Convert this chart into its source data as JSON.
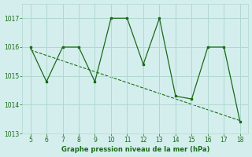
{
  "x": [
    5,
    6,
    7,
    8,
    9,
    10,
    11,
    12,
    13,
    14,
    15,
    16,
    17,
    18
  ],
  "y": [
    1016.0,
    1014.8,
    1016.0,
    1016.0,
    1014.8,
    1017.0,
    1017.0,
    1015.4,
    1017.0,
    1014.3,
    1014.2,
    1016.0,
    1016.0,
    1013.4
  ],
  "trend_x": [
    5,
    18
  ],
  "trend_y": [
    1015.9,
    1013.45
  ],
  "line_color": "#1a6b1a",
  "bg_color": "#d4eeed",
  "grid_color": "#b0d8d0",
  "xlabel": "Graphe pression niveau de la mer (hPa)",
  "ylim": [
    1013.0,
    1017.5
  ],
  "xlim": [
    4.5,
    18.5
  ],
  "yticks": [
    1013,
    1014,
    1015,
    1016,
    1017
  ],
  "xticks": [
    5,
    6,
    7,
    8,
    9,
    10,
    11,
    12,
    13,
    14,
    15,
    16,
    17,
    18
  ]
}
